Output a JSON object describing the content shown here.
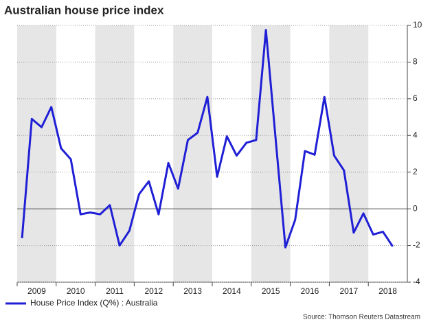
{
  "chart_data": {
    "type": "line",
    "title": "Australian house price index",
    "source": "Source: Thomson Reuters Datastream",
    "x": [
      2009.125,
      2009.375,
      2009.625,
      2009.875,
      2010.125,
      2010.375,
      2010.625,
      2010.875,
      2011.125,
      2011.375,
      2011.625,
      2011.875,
      2012.125,
      2012.375,
      2012.625,
      2012.875,
      2013.125,
      2013.375,
      2013.625,
      2013.875,
      2014.125,
      2014.375,
      2014.625,
      2014.875,
      2015.125,
      2015.375,
      2015.625,
      2015.875,
      2016.125,
      2016.375,
      2016.625,
      2016.875,
      2017.125,
      2017.375,
      2017.625,
      2017.875,
      2018.125,
      2018.375,
      2018.625
    ],
    "series": [
      {
        "name": "House Price Index (Q%) : Australia",
        "color": "#1f1fd6",
        "values": [
          -1.6,
          4.9,
          4.45,
          5.55,
          3.3,
          2.7,
          -0.3,
          -0.2,
          -0.3,
          0.2,
          -2.0,
          -1.2,
          0.8,
          1.5,
          -0.3,
          2.5,
          1.1,
          3.75,
          4.15,
          6.1,
          1.75,
          3.95,
          2.9,
          3.6,
          3.75,
          9.75,
          3.8,
          -2.1,
          -0.6,
          3.15,
          2.95,
          6.1,
          2.9,
          2.1,
          -1.3,
          -0.25,
          -1.4,
          -1.25,
          -2.05
        ]
      }
    ],
    "xlim": [
      2009,
      2019
    ],
    "xticks": [
      2009,
      2010,
      2011,
      2012,
      2013,
      2014,
      2015,
      2016,
      2017,
      2018
    ],
    "ylim": [
      -4,
      10
    ],
    "yticks": [
      -4,
      -2,
      0,
      2,
      4,
      6,
      8,
      10
    ],
    "grid": true,
    "legend": "bottom-left"
  }
}
